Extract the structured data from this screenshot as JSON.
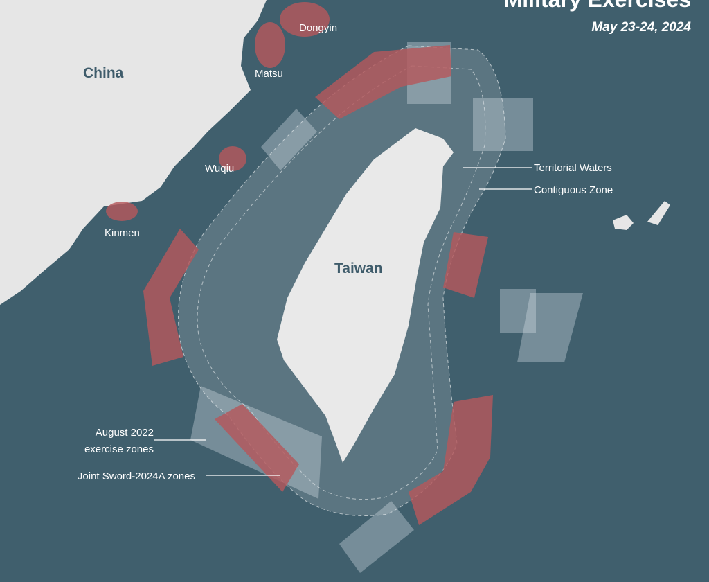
{
  "title": "Military Exercises",
  "subtitle": "May 23-24, 2024",
  "colors": {
    "sea": "#405f6d",
    "land": "#e6e6e6",
    "joint_sword_zone": "#b5585b",
    "august_2022_zone": "#a9bcc4"
  },
  "places": {
    "china": "China",
    "taiwan": "Taiwan",
    "dongyin": "Dongyin",
    "matsu": "Matsu",
    "wuqiu": "Wuqiu",
    "kinmen": "Kinmen"
  },
  "legend": {
    "territorial_waters": "Territorial Waters",
    "contiguous_zone": "Contiguous Zone",
    "august_2022_line1": "August 2022",
    "august_2022_line2": "exercise zones",
    "joint_sword": "Joint Sword-2024A zones"
  }
}
